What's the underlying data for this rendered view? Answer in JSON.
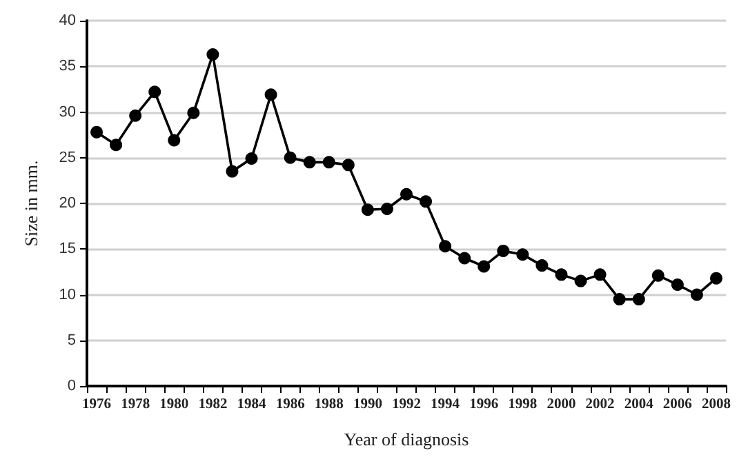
{
  "chart_data": {
    "type": "line",
    "xlabel": "Year of diagnosis",
    "ylabel": "Size in mm.",
    "categories": [
      "1976",
      null,
      "1978",
      null,
      "1980",
      null,
      "1982",
      null,
      "1984",
      null,
      "1986",
      null,
      "1988",
      null,
      "1990",
      null,
      "1992",
      null,
      "1994",
      null,
      "1996",
      null,
      "1998",
      null,
      "2000",
      null,
      "2002",
      null,
      "2004",
      null,
      "2006",
      null,
      "2008"
    ],
    "series": [
      {
        "color": "#000000",
        "values": [
          27.8,
          26.4,
          29.6,
          32.2,
          26.9,
          29.9,
          36.3,
          23.5,
          24.9,
          31.9,
          25,
          24.5,
          24.5,
          24.2,
          19.3,
          19.4,
          21,
          20.2,
          15.3,
          14,
          13.1,
          14.8,
          14.4,
          13.2,
          12.2,
          11.5,
          12.2,
          9.5,
          9.5,
          12.1,
          11.1,
          10,
          11.8
        ]
      }
    ],
    "ylim": [
      0,
      40
    ],
    "yticks": [
      0,
      5,
      10,
      15,
      20,
      25,
      30,
      35,
      40
    ],
    "grid": "y",
    "marker": "circle",
    "line_style": "solid"
  }
}
